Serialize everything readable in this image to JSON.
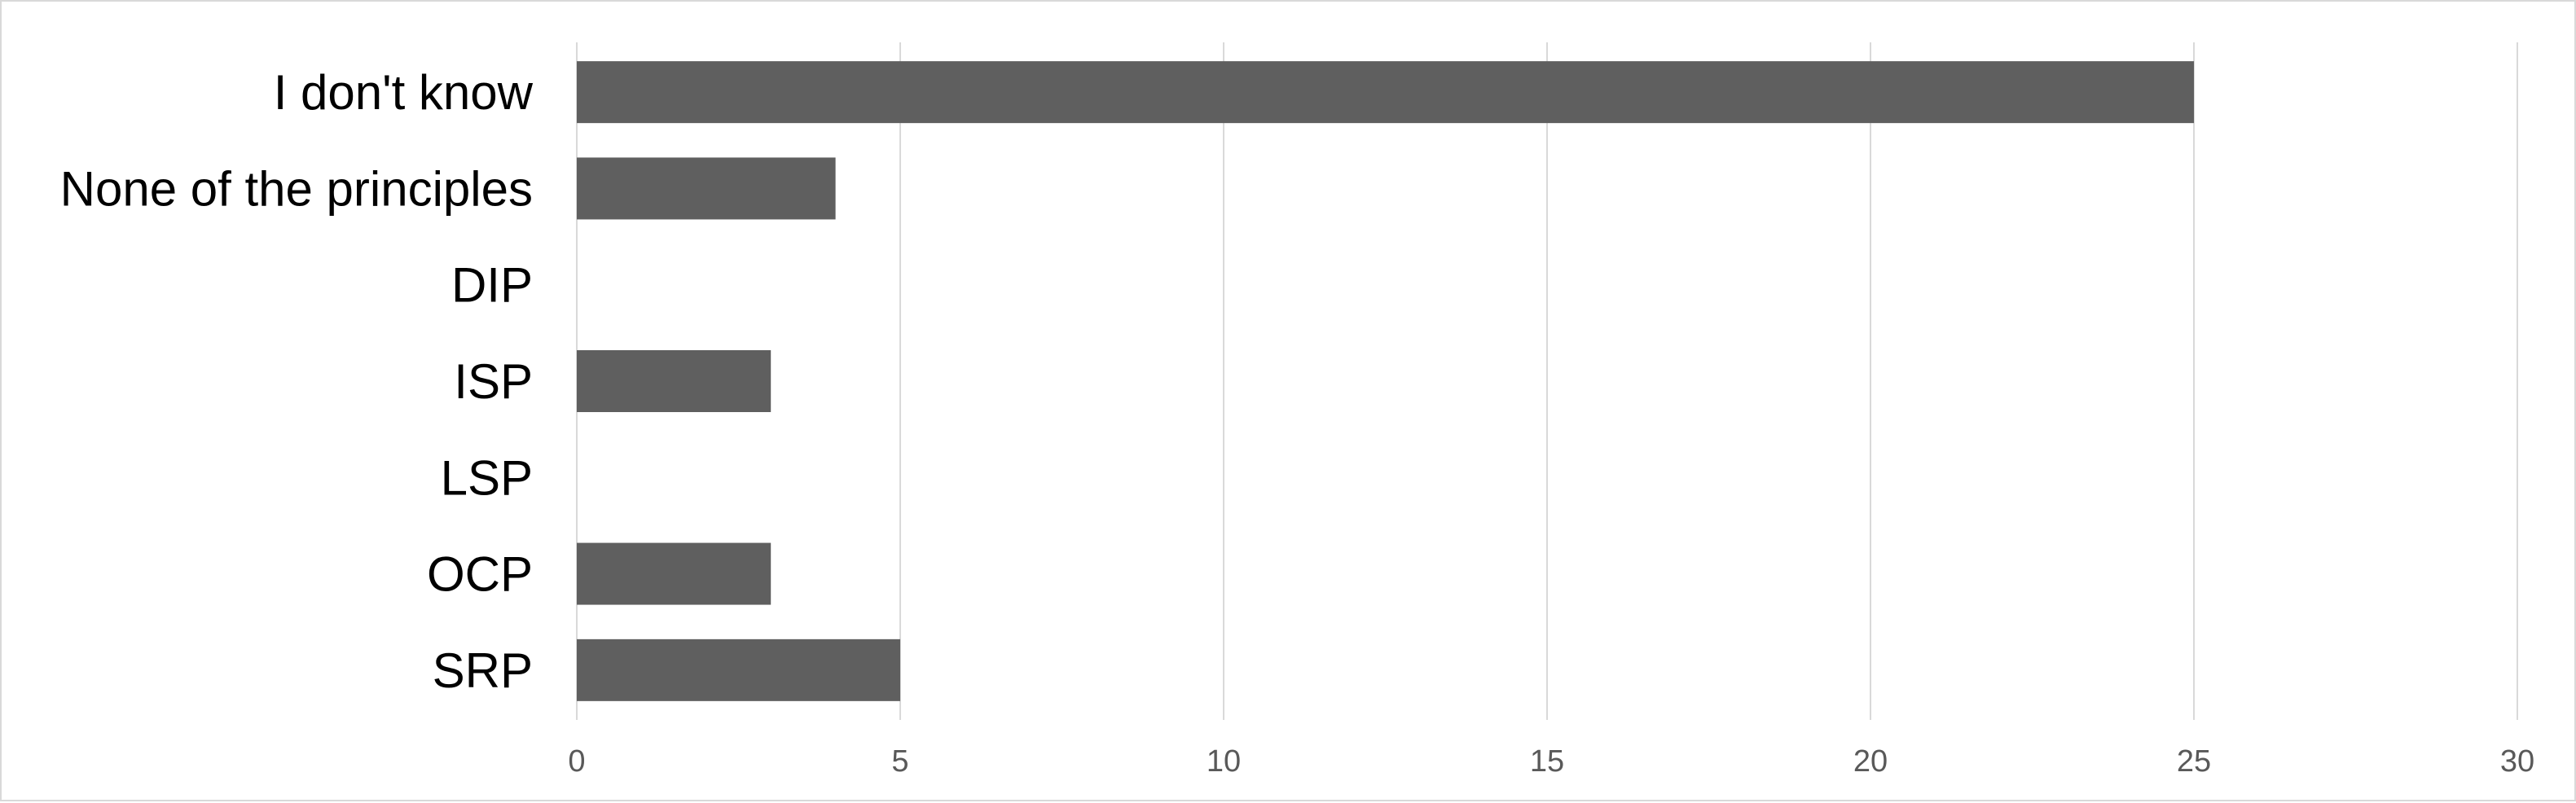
{
  "chart_data": {
    "type": "bar",
    "orientation": "horizontal",
    "categories": [
      "I don't know",
      "None of the principles",
      "DIP",
      "ISP",
      "LSP",
      "OCP",
      "SRP"
    ],
    "values": [
      25,
      4,
      0,
      3,
      0,
      3,
      5
    ],
    "xlim": [
      0,
      30
    ],
    "xticks": [
      "0",
      "5",
      "10",
      "15",
      "20",
      "25",
      "30"
    ],
    "title": "",
    "xlabel": "",
    "ylabel": "",
    "grid": "vertical",
    "legend": "none",
    "bar_color": "#5f5f5f",
    "grid_color": "#d9d9d9"
  }
}
